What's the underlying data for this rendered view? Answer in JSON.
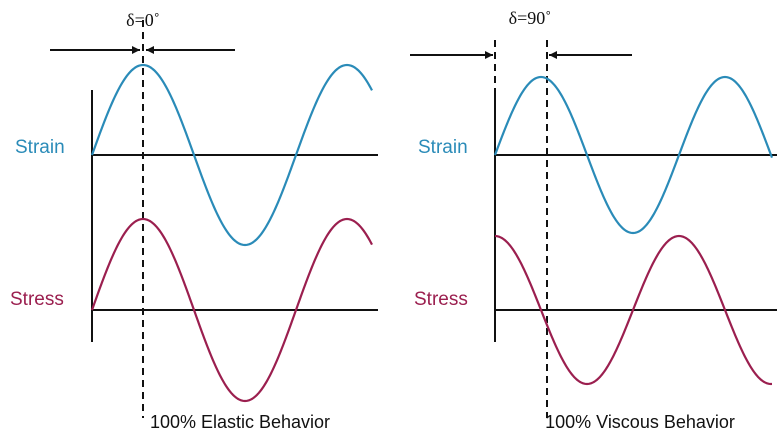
{
  "panels": [
    {
      "delta_label": "δ=0˚",
      "strain_label": "Strain",
      "stress_label": "Stress",
      "caption": "100% Elastic Behavior"
    },
    {
      "delta_label": "δ=90˚",
      "strain_label": "Strain",
      "stress_label": "Stress",
      "caption": "100% Viscous Behavior"
    }
  ]
}
